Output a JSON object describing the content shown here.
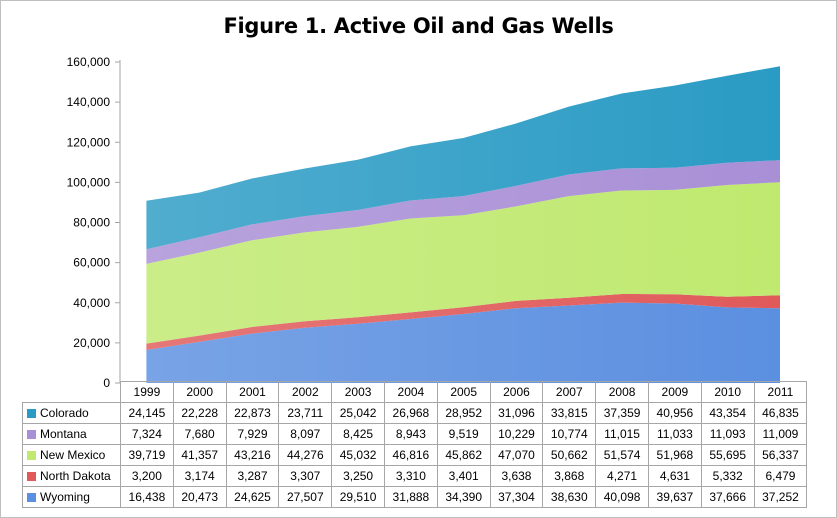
{
  "chart_data": {
    "type": "area",
    "stacked": true,
    "title": "Figure 1. Active Oil and Gas Wells",
    "xlabel": "",
    "ylabel": "",
    "ylim": [
      0,
      160000
    ],
    "yticks": [
      "0",
      "20,000",
      "40,000",
      "60,000",
      "80,000",
      "100,000",
      "120,000",
      "140,000",
      "160,000"
    ],
    "categories": [
      "1999",
      "2000",
      "2001",
      "2002",
      "2003",
      "2004",
      "2005",
      "2006",
      "2007",
      "2008",
      "2009",
      "2010",
      "2011"
    ],
    "grid": false,
    "legend": "data-table",
    "series": [
      {
        "name": "Wyoming",
        "color": "#5b8fe0",
        "values": [
          16438,
          20473,
          24625,
          27507,
          29510,
          31888,
          34390,
          37304,
          38630,
          40098,
          39637,
          37666,
          37252
        ],
        "labels": [
          "16,438",
          "20,473",
          "24,625",
          "27,507",
          "29,510",
          "31,888",
          "34,390",
          "37,304",
          "38,630",
          "40,098",
          "39,637",
          "37,666",
          "37,252"
        ]
      },
      {
        "name": "North Dakota",
        "color": "#e05a5a",
        "values": [
          3200,
          3174,
          3287,
          3307,
          3250,
          3310,
          3401,
          3638,
          3868,
          4271,
          4631,
          5332,
          6479
        ],
        "labels": [
          "3,200",
          "3,174",
          "3,287",
          "3,307",
          "3,250",
          "3,310",
          "3,401",
          "3,638",
          "3,868",
          "4,271",
          "4,631",
          "5,332",
          "6,479"
        ]
      },
      {
        "name": "New Mexico",
        "color": "#bfe96f",
        "values": [
          39719,
          41357,
          43216,
          44276,
          45032,
          46816,
          45862,
          47070,
          50662,
          51574,
          51968,
          55695,
          56337
        ],
        "labels": [
          "39,719",
          "41,357",
          "43,216",
          "44,276",
          "45,032",
          "46,816",
          "45,862",
          "47,070",
          "50,662",
          "51,574",
          "51,968",
          "55,695",
          "56,337"
        ]
      },
      {
        "name": "Montana",
        "color": "#a98fd6",
        "values": [
          7324,
          7680,
          7929,
          8097,
          8425,
          8943,
          9519,
          10229,
          10774,
          11015,
          11033,
          11093,
          11009
        ],
        "labels": [
          "7,324",
          "7,680",
          "7,929",
          "8,097",
          "8,425",
          "8,943",
          "9,519",
          "10,229",
          "10,774",
          "11,015",
          "11,033",
          "11,093",
          "11,009"
        ]
      },
      {
        "name": "Colorado",
        "color": "#2a9bc4",
        "values": [
          24145,
          22228,
          22873,
          23711,
          25042,
          26968,
          28952,
          31096,
          33815,
          37359,
          40956,
          43354,
          46835
        ],
        "labels": [
          "24,145",
          "22,228",
          "22,873",
          "23,711",
          "25,042",
          "26,968",
          "28,952",
          "31,096",
          "33,815",
          "37,359",
          "40,956",
          "43,354",
          "46,835"
        ]
      }
    ],
    "table_row_order": [
      "Colorado",
      "Montana",
      "New Mexico",
      "North Dakota",
      "Wyoming"
    ]
  }
}
